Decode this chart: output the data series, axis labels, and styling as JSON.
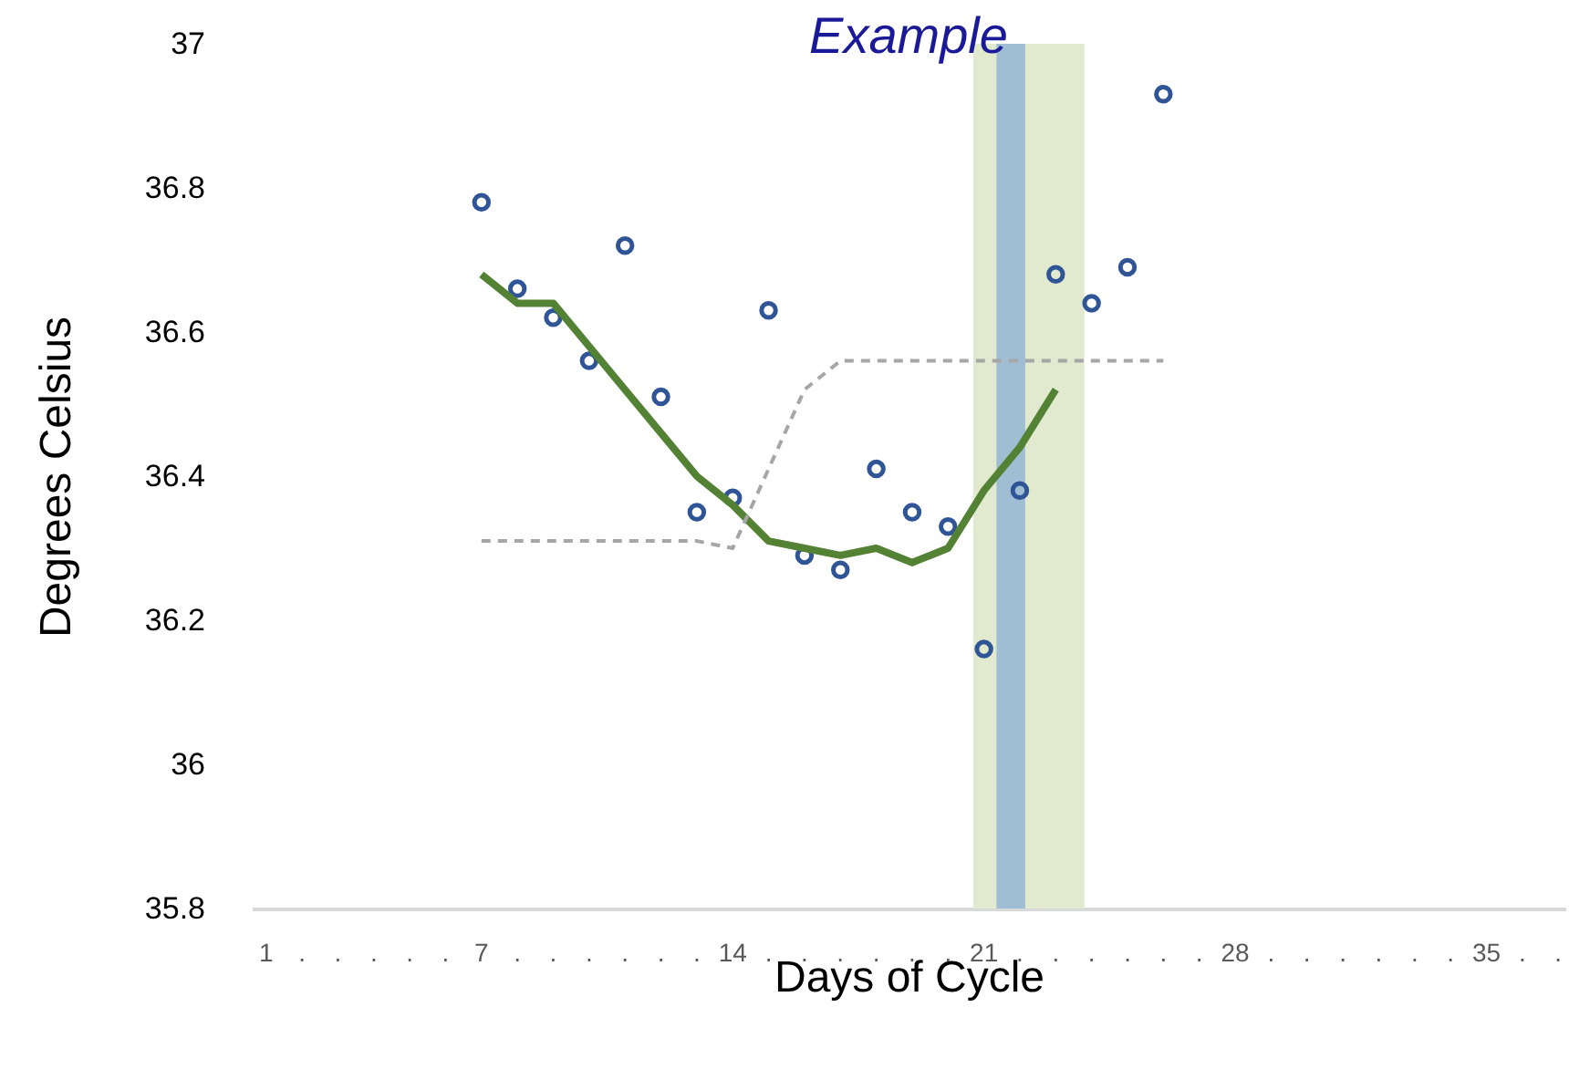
{
  "chart_data": {
    "type": "scatter",
    "title": "Example",
    "xlabel": "Days of Cycle",
    "ylabel": "Degrees Celsius",
    "xlim": [
      0.6,
      37.2
    ],
    "ylim": [
      35.8,
      37
    ],
    "xticks": [
      1,
      {
        "value": 2,
        "label": "."
      },
      {
        "value": 3,
        "label": "."
      },
      {
        "value": 4,
        "label": "."
      },
      {
        "value": 5,
        "label": "."
      },
      {
        "value": 6,
        "label": "."
      },
      7,
      {
        "value": 8,
        "label": "."
      },
      {
        "value": 9,
        "label": "."
      },
      {
        "value": 10,
        "label": "."
      },
      {
        "value": 11,
        "label": "."
      },
      {
        "value": 12,
        "label": "."
      },
      {
        "value": 13,
        "label": "."
      },
      14,
      {
        "value": 15,
        "label": "."
      },
      {
        "value": 16,
        "label": "."
      },
      {
        "value": 17,
        "label": "."
      },
      {
        "value": 18,
        "label": "."
      },
      {
        "value": 19,
        "label": "."
      },
      {
        "value": 20,
        "label": "."
      },
      21,
      {
        "value": 22,
        "label": "."
      },
      {
        "value": 23,
        "label": "."
      },
      {
        "value": 24,
        "label": "."
      },
      {
        "value": 25,
        "label": "."
      },
      {
        "value": 26,
        "label": "."
      },
      {
        "value": 27,
        "label": "."
      },
      28,
      {
        "value": 29,
        "label": "."
      },
      {
        "value": 30,
        "label": "."
      },
      {
        "value": 31,
        "label": "."
      },
      {
        "value": 32,
        "label": "."
      },
      {
        "value": 33,
        "label": "."
      },
      {
        "value": 34,
        "label": "."
      },
      35,
      {
        "value": 36,
        "label": "."
      },
      {
        "value": 37,
        "label": "."
      }
    ],
    "yticks": [
      35.8,
      36,
      36.2,
      36.4,
      36.6,
      36.8,
      37
    ],
    "grid": false,
    "bands": [
      {
        "axis": "x",
        "from": 20.7,
        "to": 23.8,
        "color": "#dfe9cc"
      },
      {
        "axis": "x",
        "from": 21.35,
        "to": 22.15,
        "color": "#9bbbd3"
      }
    ],
    "series": [
      {
        "type": "scatter",
        "color": "#2f5597",
        "marker": "circle",
        "x": [
          7,
          8,
          9,
          10,
          11,
          12,
          13,
          14,
          15,
          16,
          17,
          18,
          19,
          20,
          21,
          22,
          23,
          24,
          25,
          26
        ],
        "values": [
          36.78,
          36.66,
          36.62,
          36.56,
          36.72,
          36.51,
          36.35,
          36.37,
          36.63,
          36.29,
          36.27,
          36.41,
          36.35,
          36.33,
          36.16,
          36.38,
          36.68,
          36.64,
          36.69,
          36.93
        ]
      },
      {
        "type": "line",
        "color": "#548235",
        "marker": "none",
        "line_style": "solid",
        "x": [
          7,
          8,
          9,
          10,
          11,
          12,
          13,
          14,
          15,
          16,
          17,
          18,
          19,
          20,
          21,
          22,
          23
        ],
        "values": [
          36.68,
          36.64,
          36.64,
          36.58,
          36.52,
          36.46,
          36.4,
          36.36,
          36.31,
          36.3,
          36.29,
          36.3,
          36.28,
          36.3,
          36.38,
          36.44,
          36.52
        ]
      },
      {
        "type": "line",
        "color": "#a6a6a6",
        "marker": "none",
        "line_style": "dashed",
        "x": [
          7,
          8,
          9,
          10,
          11,
          12,
          13,
          14,
          15,
          16,
          17,
          18,
          19,
          20,
          21,
          22,
          23,
          24,
          25,
          26
        ],
        "values": [
          36.31,
          36.31,
          36.31,
          36.31,
          36.31,
          36.31,
          36.31,
          36.3,
          36.41,
          36.52,
          36.56,
          36.56,
          36.56,
          36.56,
          36.56,
          36.56,
          36.56,
          36.56,
          36.56,
          36.56
        ]
      }
    ]
  }
}
